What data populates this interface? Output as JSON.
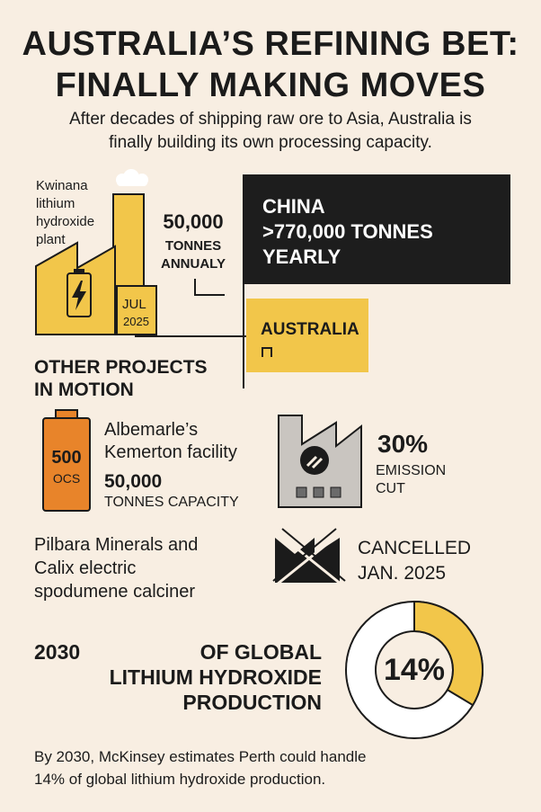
{
  "header": {
    "title_line1": "AUSTRALIA’S REFINING BET:",
    "title_line2": "FINALLY MAKING MOVES",
    "subtitle_line1": "After decades of shipping raw ore to Asia, Australia is",
    "subtitle_line2": "finally building its own processing capacity."
  },
  "kwinana": {
    "label_lines": [
      "Kwinana",
      "lithium",
      "hydroxide",
      "plant"
    ],
    "date_month": "JUL",
    "date_year": "2025",
    "capacity_value": "50,000",
    "capacity_unit_line1": "TONNES",
    "capacity_unit_line2": "ANNUALY",
    "icon": "battery-bolt-icon"
  },
  "comparison": {
    "china_lines": [
      "CHINA",
      ">770,000 TONNES",
      "YEARLY"
    ],
    "australia_label": "AUSTRALIA",
    "colors": {
      "china": "#1d1d1d",
      "australia": "#f2c64a"
    }
  },
  "other_projects": {
    "heading_line1": "OTHER PROJECTS",
    "heading_line2": "IN MOTION",
    "albemarle": {
      "battery_value": "500",
      "battery_unit": "OCS",
      "name_line1": "Albemarle’s",
      "name_line2": "Kemerton facility",
      "capacity_value": "50,000",
      "capacity_unit": "TONNES CAPACITY"
    },
    "emission": {
      "value": "30%",
      "label_line1": "EMISSION",
      "label_line2": "CUT"
    },
    "pilbara": {
      "name_lines": [
        "Pilbara Minerals and",
        "Calix electric",
        "spodumene calciner"
      ],
      "status_line1": "CANCELLED",
      "status_line2": "JAN. 2025"
    }
  },
  "projection": {
    "year": "2030",
    "text_line1": "OF GLOBAL",
    "text_line2": "LITHIUM HYDROXIDE",
    "text_line3": "PRODUCTION",
    "percent_label": "14%",
    "share": 0.14,
    "ring_color": "#f2c64a"
  },
  "footnote": {
    "line1": "By 2030, McKinsey estimates Perth could handle",
    "line2": "14% of global lithium hydroxide production."
  }
}
